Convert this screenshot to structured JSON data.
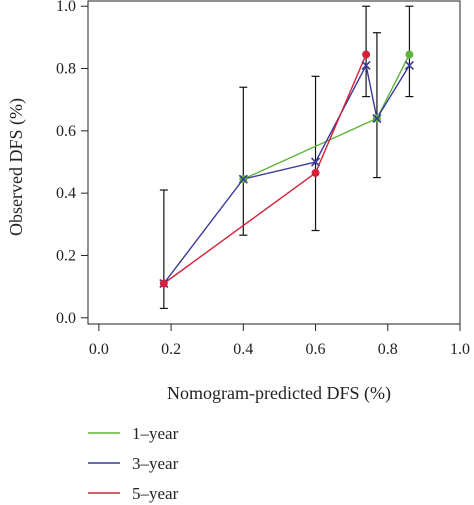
{
  "chart_data": {
    "type": "line",
    "xlabel": "Nomogram-predicted DFS (%)",
    "ylabel": "Observed DFS (%)",
    "xlim": [
      -0.03,
      1.0
    ],
    "ylim": [
      -0.02,
      1.02
    ],
    "x_ticks": [
      "0.0",
      "0.2",
      "0.4",
      "0.6",
      "0.8",
      "1.0"
    ],
    "x_tick_values": [
      0.0,
      0.2,
      0.4,
      0.6,
      0.8,
      1.0
    ],
    "y_ticks": [
      "0.0",
      "0.2",
      "0.4",
      "0.6",
      "0.8",
      "1.0"
    ],
    "y_tick_values": [
      0.0,
      0.2,
      0.4,
      0.6,
      0.8,
      1.0
    ],
    "grid": false,
    "legend_placement": "bottom-left",
    "series": [
      {
        "name": "1–year",
        "color": "#5db53a",
        "marker": "circle",
        "x": [
          0.4,
          0.77,
          0.86
        ],
        "y": [
          0.445,
          0.64,
          0.845
        ]
      },
      {
        "name": "3–year",
        "color": "#3a3a9a",
        "marker": "x",
        "x": [
          0.18,
          0.4,
          0.6,
          0.74,
          0.77,
          0.86
        ],
        "y": [
          0.11,
          0.445,
          0.5,
          0.81,
          0.64,
          0.81
        ]
      },
      {
        "name": "5–year",
        "color": "#d4203a",
        "marker": "circle",
        "x": [
          0.18,
          0.6,
          0.74
        ],
        "y": [
          0.11,
          0.465,
          0.845
        ]
      }
    ],
    "error_bars": [
      {
        "x": 0.18,
        "low": 0.03,
        "high": 0.41
      },
      {
        "x": 0.4,
        "low": 0.265,
        "high": 0.74
      },
      {
        "x": 0.6,
        "low": 0.28,
        "high": 0.775
      },
      {
        "x": 0.74,
        "low": 0.71,
        "high": 1.0
      },
      {
        "x": 0.77,
        "low": 0.45,
        "high": 0.915
      },
      {
        "x": 0.86,
        "low": 0.71,
        "high": 1.0
      }
    ]
  }
}
